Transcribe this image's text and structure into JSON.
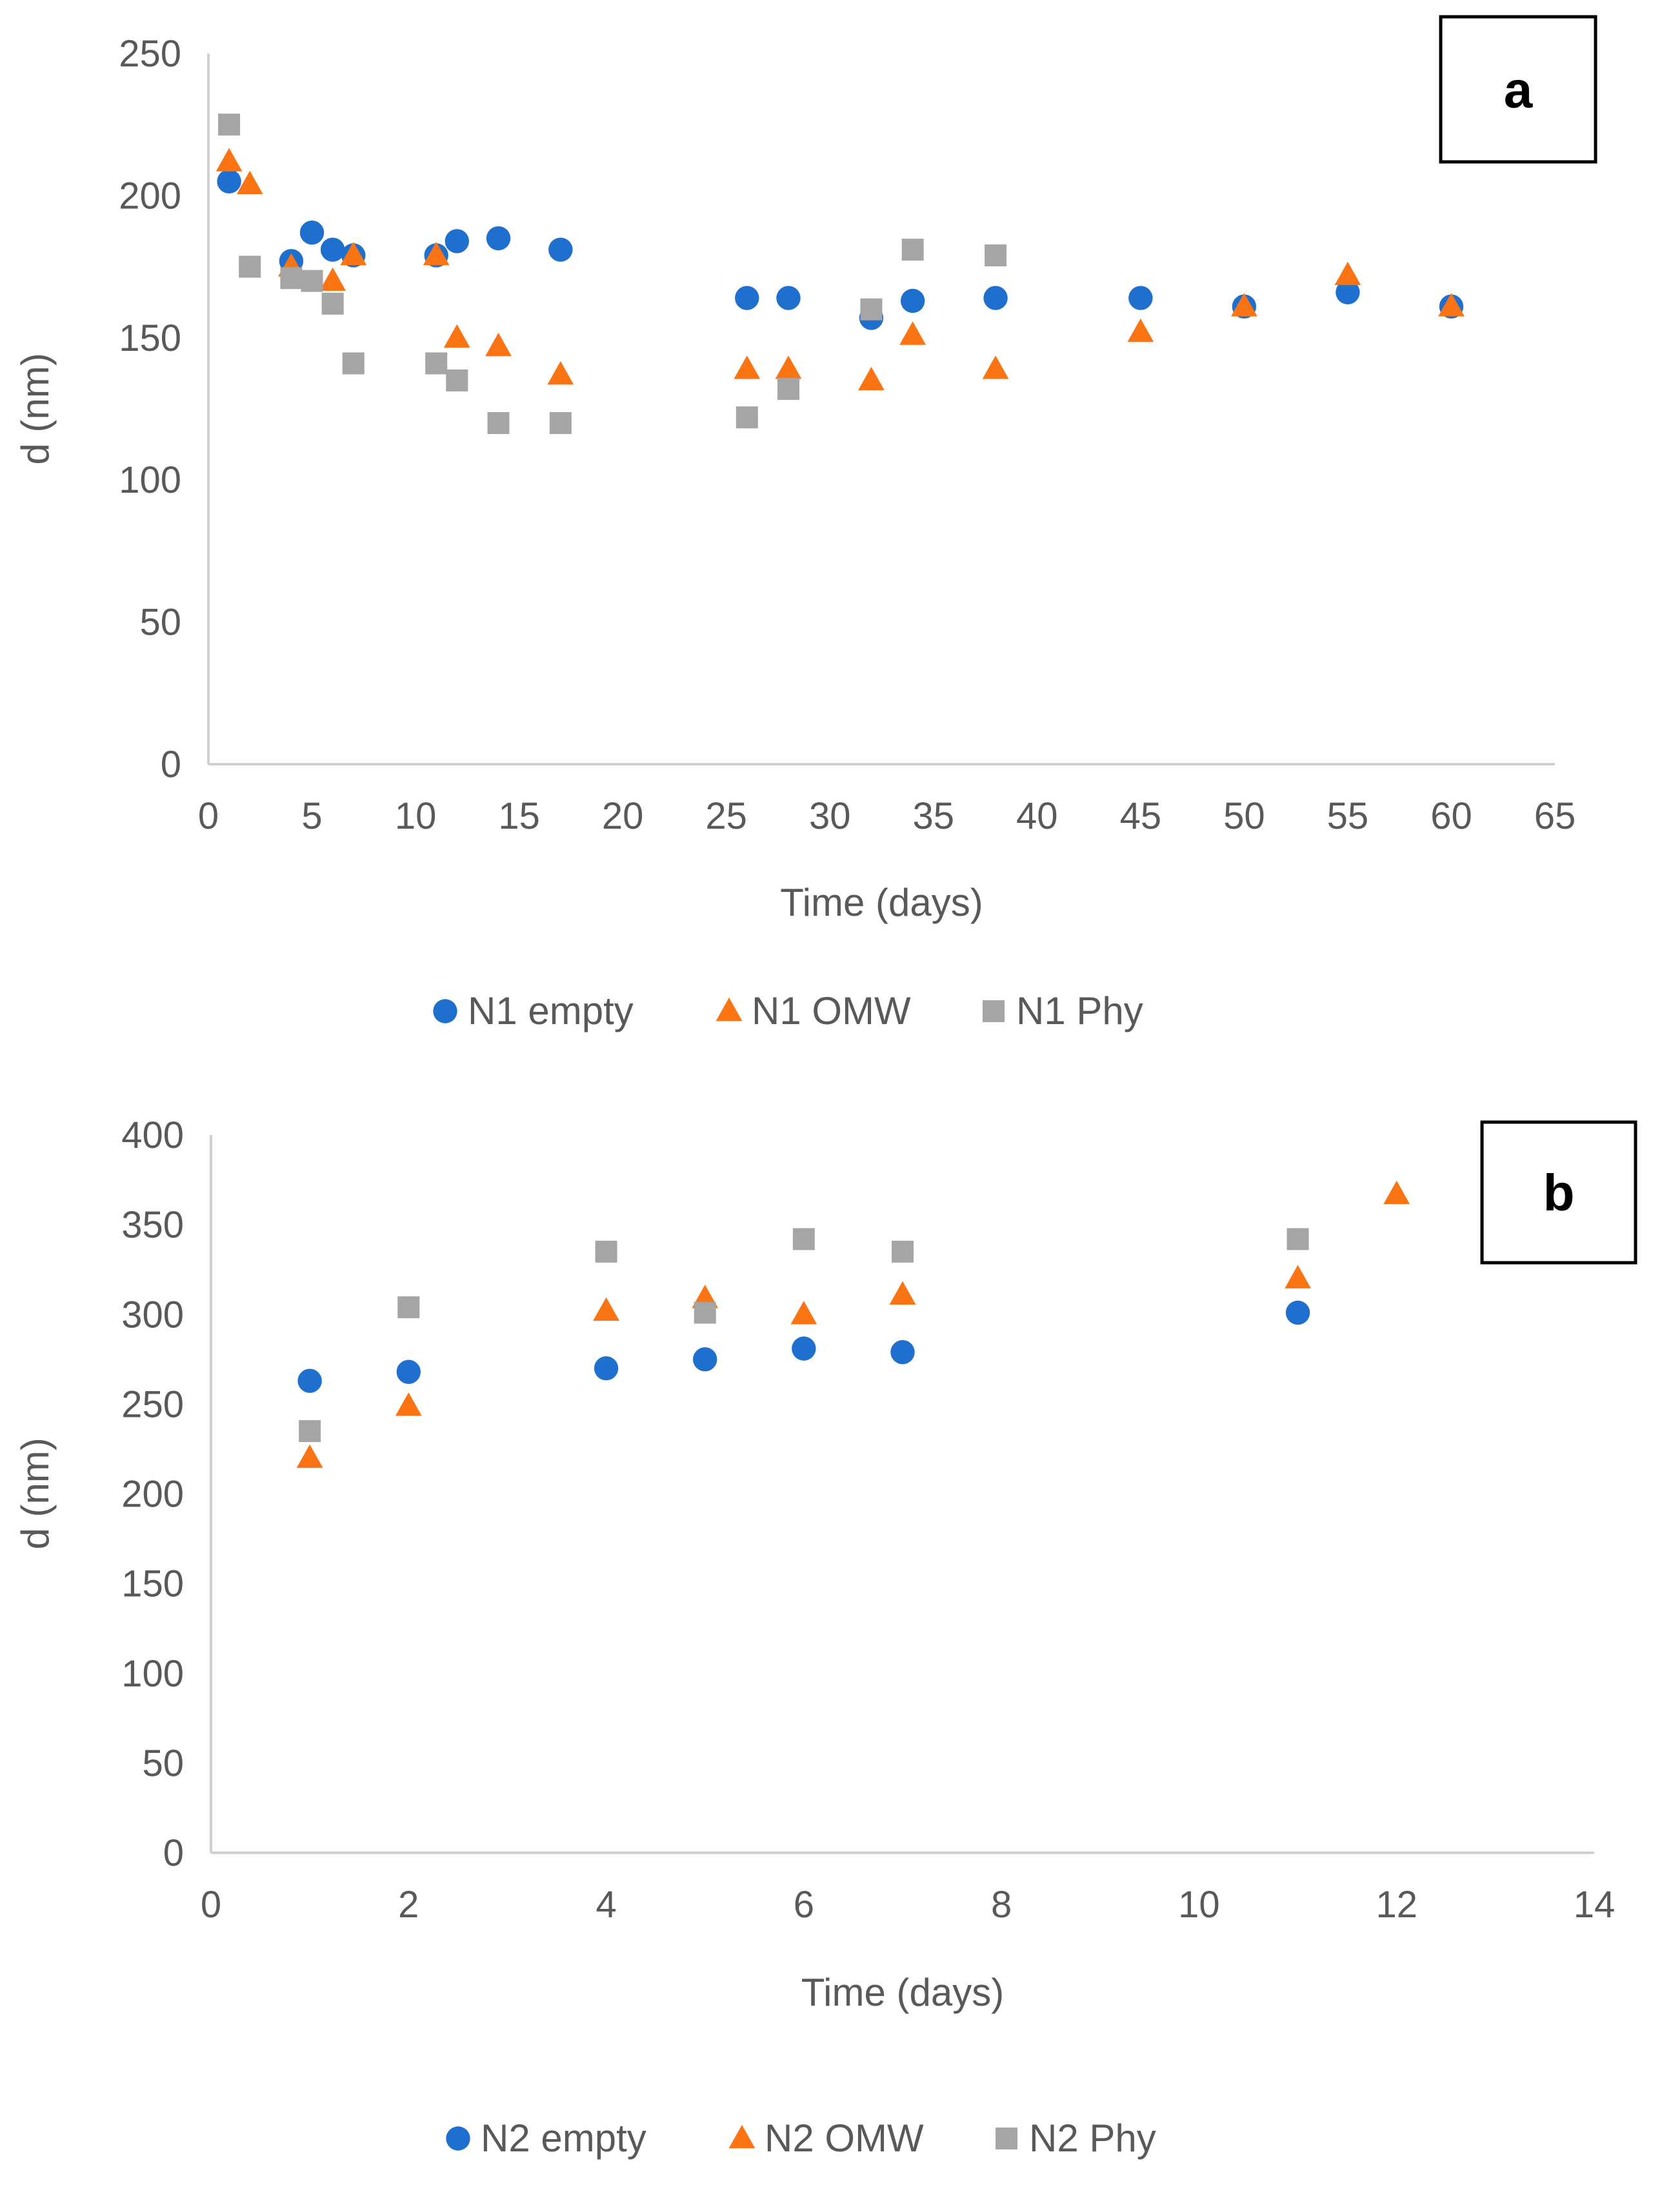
{
  "colors": {
    "empty": "#1f6fcf",
    "omw": "#fb7413",
    "phy": "#a5a5a5",
    "axis": "#d0d0d0",
    "text": "#595959"
  },
  "chart_data": [
    {
      "type": "scatter",
      "panel_label": "a",
      "xlabel": "Time (days)",
      "ylabel": "d (nm)",
      "xlim": [
        0,
        65
      ],
      "ylim": [
        0,
        250
      ],
      "xticks": [
        0,
        5,
        10,
        15,
        20,
        25,
        30,
        35,
        40,
        45,
        50,
        55,
        60,
        65
      ],
      "yticks": [
        0,
        50,
        100,
        150,
        200,
        250
      ],
      "grid": false,
      "legend_position": "bottom",
      "series": [
        {
          "name": "N1 empty",
          "marker": "circle",
          "color_key": "empty",
          "x": [
            1,
            4,
            5,
            6,
            7,
            11,
            12,
            14,
            17,
            26,
            28,
            32,
            34,
            38,
            45,
            50,
            55,
            60
          ],
          "y": [
            205,
            177,
            187,
            181,
            179,
            179,
            184,
            185,
            181,
            164,
            164,
            157,
            163,
            164,
            164,
            161,
            166,
            161
          ]
        },
        {
          "name": "N1 OMW",
          "marker": "triangle",
          "color_key": "omw",
          "x": [
            1,
            2,
            4,
            6,
            7,
            11,
            12,
            14,
            17,
            26,
            28,
            32,
            34,
            38,
            45,
            50,
            55,
            60
          ],
          "y": [
            212,
            204,
            175,
            170,
            179,
            179,
            150,
            147,
            137,
            139,
            139,
            135,
            151,
            139,
            152,
            161,
            172,
            161
          ]
        },
        {
          "name": "N1 Phy",
          "marker": "square",
          "color_key": "phy",
          "x": [
            1,
            2,
            4,
            5,
            6,
            7,
            11,
            12,
            14,
            17,
            26,
            28,
            32,
            34,
            38
          ],
          "y": [
            225,
            175,
            171,
            170,
            162,
            141,
            141,
            135,
            120,
            120,
            122,
            132,
            160,
            181,
            179
          ]
        }
      ]
    },
    {
      "type": "scatter",
      "panel_label": "b",
      "xlabel": "Time (days)",
      "ylabel": "d (nm)",
      "xlim": [
        0,
        14
      ],
      "ylim": [
        0,
        400
      ],
      "xticks": [
        0,
        2,
        4,
        6,
        8,
        10,
        12,
        14
      ],
      "yticks": [
        0,
        50,
        100,
        150,
        200,
        250,
        300,
        350,
        400
      ],
      "grid": false,
      "legend_position": "bottom",
      "series": [
        {
          "name": "N2 empty",
          "marker": "circle",
          "color_key": "empty",
          "x": [
            1,
            2,
            4,
            5,
            6,
            7,
            11
          ],
          "y": [
            263,
            268,
            270,
            275,
            281,
            279,
            301
          ]
        },
        {
          "name": "N2 OMW",
          "marker": "triangle",
          "color_key": "omw",
          "x": [
            1,
            2,
            4,
            5,
            6,
            7,
            11,
            12
          ],
          "y": [
            220,
            249,
            302,
            309,
            300,
            311,
            320,
            367
          ]
        },
        {
          "name": "N2 Phy",
          "marker": "square",
          "color_key": "phy",
          "x": [
            1,
            2,
            4,
            5,
            6,
            7,
            11
          ],
          "y": [
            235,
            304,
            335,
            301,
            342,
            335,
            342
          ]
        }
      ]
    }
  ]
}
